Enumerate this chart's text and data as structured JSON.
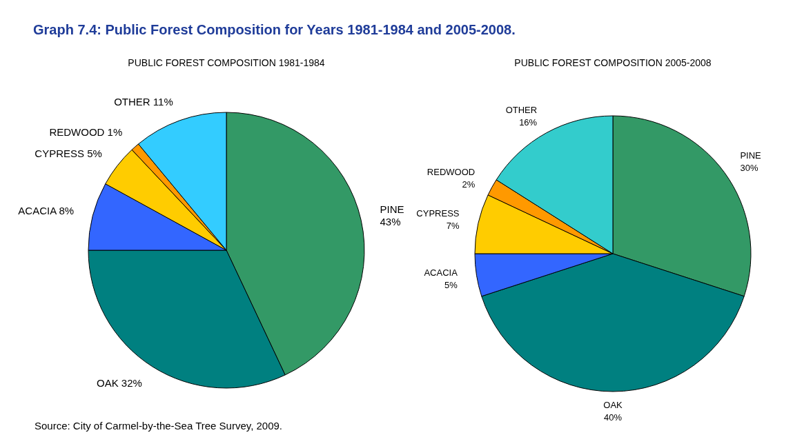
{
  "chart_data": [
    {
      "type": "pie",
      "title": "PUBLIC FOREST COMPOSITION 1981-1984",
      "categories": [
        "PINE",
        "OAK",
        "ACACIA",
        "CYPRESS",
        "REDWOOD",
        "OTHER"
      ],
      "values": [
        43,
        32,
        8,
        5,
        1,
        11
      ],
      "value_labels": [
        "43%",
        "32%",
        "8%",
        "5%",
        "1%",
        "11%"
      ],
      "colors": [
        "#339966",
        "#008080",
        "#3366ff",
        "#ffcc00",
        "#ff9900",
        "#33ccff"
      ],
      "annotations": [
        "Graph 7.4:  Public Forest Composition for Years 1981-1984 and 2005-2008.",
        "Source: City of Carmel-by-the-Sea Tree Survey, 2009."
      ]
    },
    {
      "type": "pie",
      "title": "PUBLIC FOREST COMPOSITION 2005-2008",
      "categories": [
        "PINE",
        "OAK",
        "ACACIA",
        "CYPRESS",
        "REDWOOD",
        "OTHER"
      ],
      "values": [
        30,
        40,
        5,
        7,
        2,
        16
      ],
      "value_labels": [
        "30%",
        "40%",
        "5%",
        "7%",
        "2%",
        "16%"
      ],
      "colors": [
        "#339966",
        "#008080",
        "#3366ff",
        "#ffcc00",
        "#ff9900",
        "#33cccc"
      ]
    }
  ]
}
